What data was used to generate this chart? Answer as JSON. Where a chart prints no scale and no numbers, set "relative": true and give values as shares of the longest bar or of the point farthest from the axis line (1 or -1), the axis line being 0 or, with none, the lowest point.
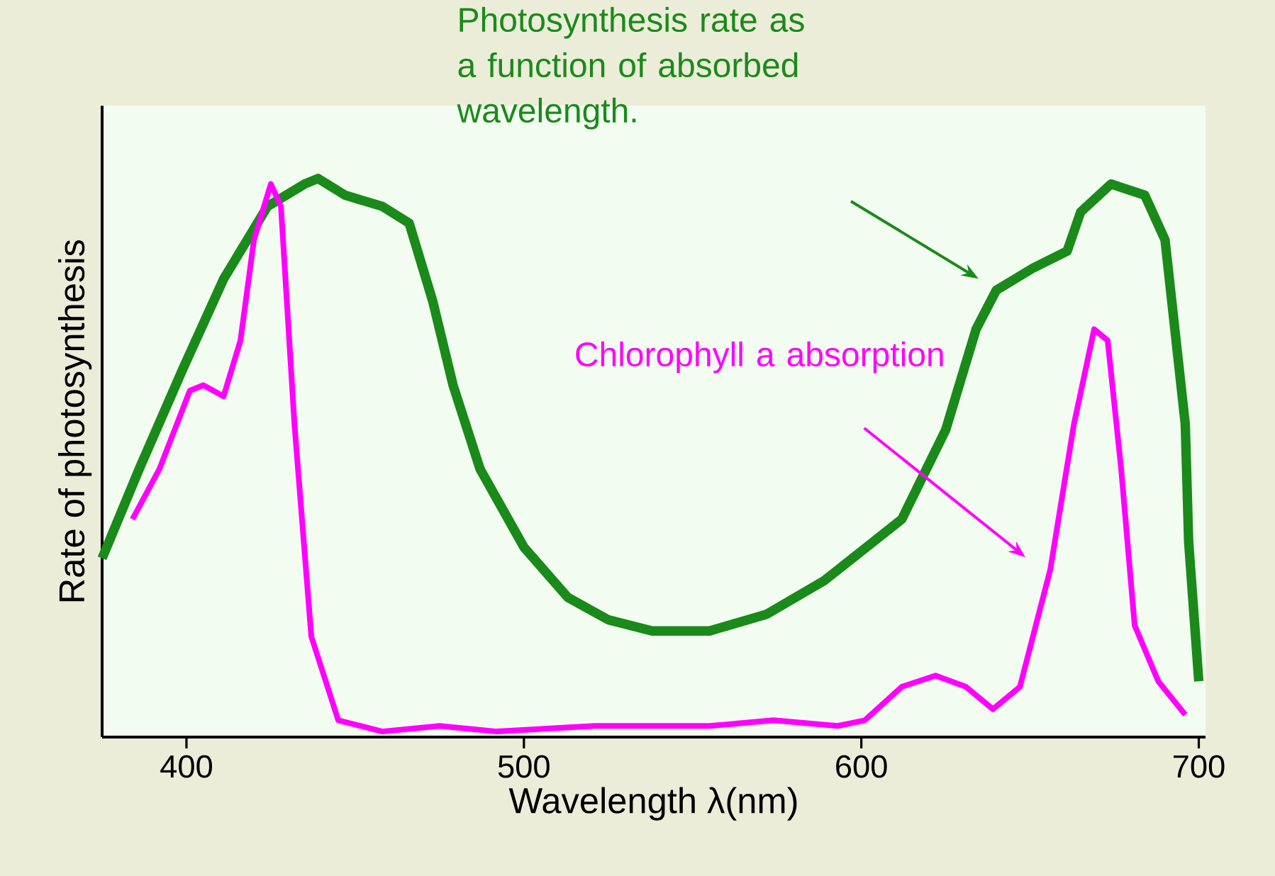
{
  "chart_data": {
    "type": "line",
    "relative": true,
    "xlabel": "Wavelength λ(nm)",
    "ylabel": "Rate of photosynthesis",
    "xlim": [
      375,
      702
    ],
    "xticks": [
      400,
      500,
      600,
      700
    ],
    "series": [
      {
        "name": "Photosynthesis rate as a function of absorbed wavelength.",
        "color": "#1a8a1a",
        "x": [
          375,
          386,
          399,
          411,
          424,
          435,
          439,
          447,
          458,
          466,
          473,
          479,
          487,
          500,
          513,
          525,
          538,
          555,
          572,
          589,
          612,
          625,
          634,
          640,
          651,
          661,
          665,
          674,
          684,
          690,
          696,
          697,
          700
        ],
        "values": [
          0.32,
          0.48,
          0.66,
          0.82,
          0.95,
          0.99,
          1.0,
          0.97,
          0.95,
          0.92,
          0.78,
          0.63,
          0.48,
          0.34,
          0.25,
          0.21,
          0.19,
          0.19,
          0.22,
          0.28,
          0.39,
          0.55,
          0.73,
          0.8,
          0.84,
          0.87,
          0.94,
          0.99,
          0.97,
          0.89,
          0.56,
          0.35,
          0.1
        ]
      },
      {
        "name": "Chlorophyll a absorption",
        "type": "line",
        "color": "#ff00ff",
        "x": [
          384,
          392,
          401,
          405,
          411,
          416,
          420,
          425,
          428,
          432,
          437,
          445,
          458,
          475,
          492,
          521,
          555,
          574,
          593,
          601,
          612,
          622,
          631,
          639,
          647,
          656,
          663,
          669,
          673,
          677,
          681,
          688,
          696
        ],
        "values": [
          0.39,
          0.48,
          0.62,
          0.63,
          0.61,
          0.71,
          0.89,
          0.99,
          0.95,
          0.56,
          0.18,
          0.03,
          0.01,
          0.02,
          0.01,
          0.02,
          0.02,
          0.03,
          0.02,
          0.03,
          0.09,
          0.11,
          0.09,
          0.05,
          0.09,
          0.3,
          0.56,
          0.73,
          0.71,
          0.48,
          0.2,
          0.1,
          0.04
        ]
      }
    ]
  }
}
